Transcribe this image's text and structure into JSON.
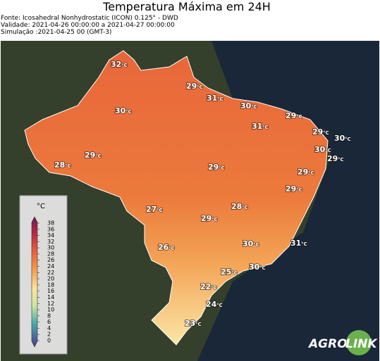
{
  "header": {
    "title": "Temperatura Máxima em 24H",
    "source": "Fonte: Icosahedral Nonhydrostatic (ICON) 0.125° - DWD",
    "validity": "Validade: 2021-04-26 00:00:00 a 2021-04-27 00:00:00",
    "simulation": "Simulação :2021-04-25 00 (GMT-3)"
  },
  "map": {
    "unit": "°C",
    "labels": [
      "32",
      "29",
      "31",
      "30",
      "30",
      "29",
      "31",
      "29",
      "30",
      "30",
      "29",
      "29",
      "28",
      "29",
      "29",
      "29",
      "27",
      "28",
      "29",
      "30",
      "31",
      "26",
      "30",
      "25",
      "22",
      "24",
      "23"
    ]
  },
  "colorbar": {
    "unit": "°C",
    "ticks": [
      38,
      36,
      34,
      32,
      30,
      28,
      26,
      24,
      22,
      20,
      18,
      16,
      14,
      12,
      10,
      8,
      6,
      4,
      2,
      0
    ]
  },
  "logo": {
    "left": "AGRO",
    "right": "LINK"
  }
}
